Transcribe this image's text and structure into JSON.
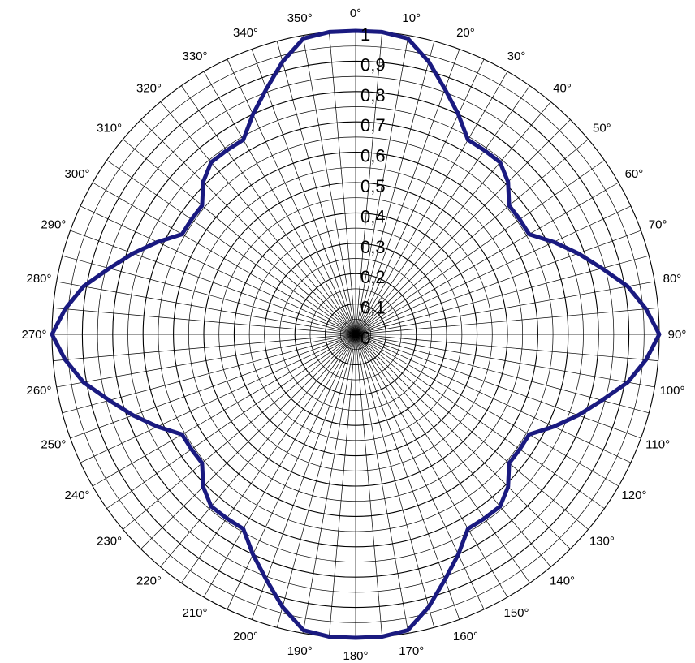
{
  "chart_data": {
    "type": "polar-line",
    "title": "",
    "angle_unit": "°",
    "angle_step_grid": 5,
    "angle_labels": [
      "0°",
      "10°",
      "20°",
      "30°",
      "40°",
      "50°",
      "60°",
      "70°",
      "80°",
      "90°",
      "100°",
      "110°",
      "120°",
      "130°",
      "140°",
      "150°",
      "160°",
      "170°",
      "180°",
      "190°",
      "200°",
      "210°",
      "220°",
      "230°",
      "240°",
      "250°",
      "260°",
      "270°",
      "280°",
      "290°",
      "300°",
      "310°",
      "320°",
      "330°",
      "340°",
      "350°"
    ],
    "angle_values": [
      0,
      10,
      20,
      30,
      40,
      50,
      60,
      70,
      80,
      90,
      100,
      110,
      120,
      130,
      140,
      150,
      160,
      170,
      180,
      190,
      200,
      210,
      220,
      230,
      240,
      250,
      260,
      270,
      280,
      290,
      300,
      310,
      320,
      330,
      340,
      350
    ],
    "radial_labels": [
      "0",
      "0,1",
      "0,2",
      "0,3",
      "0,4",
      "0,5",
      "0,6",
      "0,7",
      "0,8",
      "0,9",
      "1"
    ],
    "radial_values": [
      0,
      0.1,
      0.2,
      0.3,
      0.4,
      0.5,
      0.6,
      0.7,
      0.8,
      0.9,
      1
    ],
    "rlim": [
      0,
      1
    ],
    "grid": true,
    "series": [
      {
        "color": "#1a1a80",
        "theta": [
          0,
          5,
          10,
          15,
          20,
          25,
          30,
          35,
          40,
          45,
          50,
          55,
          60,
          65,
          70,
          75,
          80,
          85,
          90,
          95,
          100,
          105,
          110,
          115,
          120,
          125,
          130,
          135,
          140,
          145,
          150,
          155,
          160,
          165,
          170,
          175,
          180,
          185,
          190,
          195,
          200,
          205,
          210,
          215,
          220,
          225,
          230,
          235,
          240,
          245,
          250,
          255,
          260,
          265,
          270,
          275,
          280,
          285,
          290,
          295,
          300,
          305,
          310,
          315,
          320,
          325,
          330,
          335,
          340,
          345,
          350,
          355
        ],
        "r": [
          1.0,
          1.0,
          0.99,
          0.93,
          0.86,
          0.8,
          0.74,
          0.74,
          0.74,
          0.71,
          0.66,
          0.66,
          0.66,
          0.72,
          0.78,
          0.84,
          0.91,
          0.96,
          1.0,
          0.96,
          0.91,
          0.84,
          0.78,
          0.72,
          0.66,
          0.66,
          0.66,
          0.71,
          0.74,
          0.74,
          0.74,
          0.8,
          0.86,
          0.93,
          0.99,
          1.0,
          1.0,
          1.0,
          0.99,
          0.93,
          0.86,
          0.8,
          0.74,
          0.74,
          0.74,
          0.71,
          0.66,
          0.66,
          0.66,
          0.72,
          0.78,
          0.84,
          0.91,
          0.96,
          1.0,
          0.96,
          0.91,
          0.84,
          0.78,
          0.72,
          0.66,
          0.66,
          0.66,
          0.71,
          0.74,
          0.74,
          0.74,
          0.8,
          0.86,
          0.93,
          0.99,
          1.0
        ]
      }
    ]
  }
}
